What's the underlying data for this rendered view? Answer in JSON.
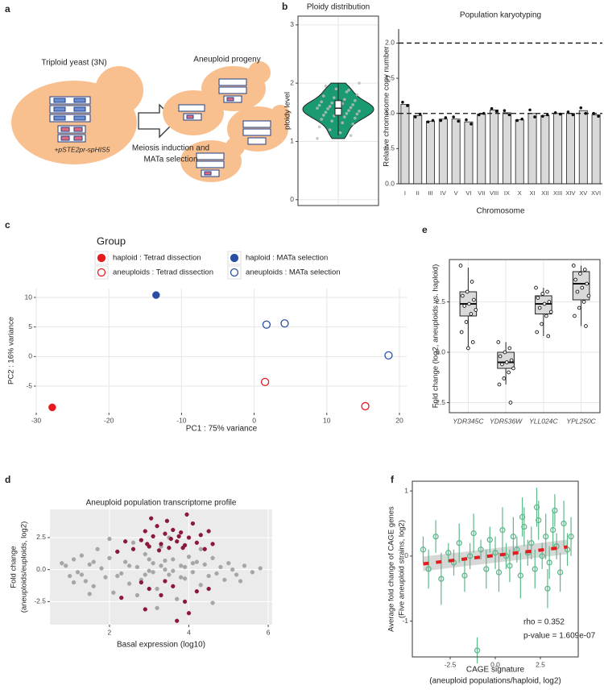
{
  "panels": [
    "a",
    "b",
    "c",
    "d",
    "e",
    "f"
  ],
  "diagram": {
    "left_label": "Triploid yeast (3N)",
    "plasmid": "+pSTE2pr-spHIS5",
    "arrow_label": [
      "Meiosis induction and",
      "MATa selection"
    ],
    "right_label": "Aneuploid progeny"
  },
  "chart_data": [
    {
      "type": "violin",
      "title": "Ploidy distribution",
      "ylabel": "ploidy level",
      "color": "#1a9a72",
      "values": [
        1.05,
        1.1,
        1.15,
        1.2,
        1.25,
        1.3,
        1.32,
        1.35,
        1.38,
        1.4,
        1.42,
        1.44,
        1.45,
        1.47,
        1.48,
        1.5,
        1.5,
        1.52,
        1.53,
        1.55,
        1.56,
        1.57,
        1.58,
        1.6,
        1.6,
        1.62,
        1.63,
        1.65,
        1.66,
        1.68,
        1.7,
        1.72,
        1.75,
        1.78,
        1.8,
        1.85,
        1.9,
        1.95,
        2.0,
        1.88
      ],
      "box": {
        "whisker_low": 1.1,
        "q1": 1.45,
        "median": 1.57,
        "q3": 1.7,
        "whisker_high": 2.0
      },
      "ylim": [
        -0.1,
        3.15
      ],
      "yticks": [
        0,
        1,
        2,
        3
      ],
      "grid": true,
      "frame": true
    },
    {
      "type": "bar",
      "title": "Population karyotyping",
      "xlabel": "Chromosome",
      "ylabel": "Relative chromosome copy number",
      "color": "#d9d9d9",
      "categories": [
        "I",
        "II",
        "III",
        "IV",
        "V",
        "VI",
        "VII",
        "VIII",
        "IX",
        "X",
        "XI",
        "XII",
        "XIII",
        "XIV",
        "XV",
        "XVI"
      ],
      "values": [
        1.13,
        0.97,
        0.89,
        0.92,
        0.92,
        0.88,
        0.99,
        1.05,
        1.01,
        0.91,
        1.0,
        0.97,
        1.0,
        1.0,
        1.04,
        0.98
      ],
      "points": [
        [
          1.16,
          1.11
        ],
        [
          0.95,
          0.99
        ],
        [
          0.88,
          0.9
        ],
        [
          0.9,
          0.94
        ],
        [
          0.95,
          0.89
        ],
        [
          0.91,
          0.85
        ],
        [
          0.98,
          1.0
        ],
        [
          1.07,
          1.03
        ],
        [
          1.04,
          0.98
        ],
        [
          0.9,
          0.92
        ],
        [
          1.05,
          0.95
        ],
        [
          0.96,
          0.98
        ],
        [
          1.01,
          0.99
        ],
        [
          1.02,
          0.98
        ],
        [
          1.08,
          1.0
        ],
        [
          1.0,
          0.96
        ]
      ],
      "reference_lines": [
        1,
        2
      ],
      "ylim": [
        0,
        2.2
      ],
      "yticks": [
        {
          "value": 0,
          "label": "0.0"
        },
        0.5,
        {
          "value": 1,
          "label": "1.0"
        },
        1.5,
        {
          "value": 2,
          "label": "2.0"
        }
      ],
      "grid": false,
      "frame": false
    },
    {
      "type": "scatter",
      "xlabel": "PC1 : 75% variance",
      "ylabel": "PC2 : 16% variance",
      "legend_title": "Group",
      "legend": "top",
      "series": [
        {
          "name": "haploid :  Tetrad dissection",
          "color": "#e8191c",
          "filled": true,
          "x": [
            -27.8
          ],
          "values": [
            -8.6
          ]
        },
        {
          "name": "aneuploids :  Tetrad dissection",
          "color": "#e8191c",
          "filled": false,
          "x": [
            1.5,
            15.3
          ],
          "values": [
            -4.3,
            -8.4
          ]
        },
        {
          "name": "haploid :  MATa selection",
          "color": "#2b4ea2",
          "filled": true,
          "x": [
            -13.5
          ],
          "values": [
            10.4
          ]
        },
        {
          "name": "aneuploids :  MATa selection",
          "color": "#2b4ea2",
          "filled": false,
          "x": [
            1.7,
            4.2,
            18.5
          ],
          "values": [
            5.4,
            5.6,
            0.2
          ]
        }
      ],
      "xlim": [
        -30,
        21
      ],
      "xticks": [
        -30,
        -20,
        -10,
        0,
        10,
        20
      ],
      "ylim": [
        -9.5,
        11.5
      ],
      "yticks": [
        -5,
        0,
        5,
        10
      ],
      "grid": true,
      "frame": false
    },
    {
      "type": "scatter",
      "title": "Aneuploid population transcriptome profile",
      "xlabel": "Basal expression (log10)",
      "ylabel": [
        "Fold change",
        "(aneuploids/euploids, log2)"
      ],
      "background": "#ebebeb",
      "series": [
        {
          "color": "#a6a6a6",
          "filled": true,
          "x": [
            0.9,
            1.0,
            1.1,
            1.2,
            1.3,
            1.4,
            1.5,
            1.6,
            1.7,
            1.8,
            1.9,
            2.0,
            2.1,
            2.2,
            2.3,
            2.4,
            2.5,
            2.6,
            2.7,
            2.8,
            2.9,
            3.0,
            3.1,
            3.2,
            3.3,
            3.4,
            3.5,
            3.6,
            3.7,
            3.8,
            3.9,
            4.0,
            4.1,
            4.2,
            4.3,
            4.4,
            4.5,
            4.6,
            4.7,
            4.8,
            4.9,
            5.0,
            5.1,
            5.2,
            5.4,
            5.6,
            5.8,
            3.1,
            3.3,
            3.6,
            2.5,
            2.9,
            3.4,
            3.9,
            4.1,
            2.2,
            1.6,
            1.3,
            0.8,
            2.7,
            3.5,
            4.3,
            1.1,
            2.0,
            4.6,
            3.2,
            1.5,
            5.3,
            3.0,
            3.8
          ],
          "values": [
            0.3,
            -0.5,
            0.8,
            -0.2,
            1.1,
            -0.9,
            0.4,
            -1.3,
            1.6,
            0.1,
            -0.6,
            0.9,
            -1.8,
            1.4,
            -0.3,
            0.6,
            -1.1,
            2.1,
            0.2,
            -0.8,
            1.2,
            -0.1,
            0.5,
            -1.5,
            1.8,
            0.0,
            -0.4,
            0.8,
            -2.3,
            0.3,
            -0.7,
            1.0,
            -0.2,
            0.6,
            -1.2,
            0.4,
            -0.5,
            0.9,
            -0.3,
            0.2,
            -0.8,
            0.5,
            0.0,
            -0.4,
            0.3,
            -0.2,
            0.1,
            -0.2,
            0.3,
            -0.1,
            0.3,
            -0.4,
            0.7,
            0.2,
            0.5,
            -0.5,
            0.6,
            -0.4,
            0.5,
            -2.0,
            2.5,
            1.6,
            -1.0,
            2.4,
            -2.6,
            -3.0,
            -1.9,
            -0.9,
            0.8,
            -0.6
          ]
        },
        {
          "color": "#8b1a3a",
          "filled": true,
          "x": [
            2.6,
            2.8,
            2.9,
            3.0,
            3.1,
            3.2,
            3.3,
            3.4,
            3.5,
            3.6,
            3.7,
            3.8,
            3.9,
            4.0,
            4.1,
            4.2,
            4.3,
            4.4,
            3.05,
            3.45,
            3.95,
            2.4,
            4.6,
            3.25,
            3.75,
            2.2,
            4.5,
            3.55,
            2.95,
            3.85,
            3.0,
            3.3,
            3.6,
            3.9,
            4.2,
            2.8,
            4.0,
            3.7,
            2.3,
            4.5,
            2.9,
            3.4
          ],
          "values": [
            1.6,
            2.3,
            3.0,
            1.8,
            2.6,
            3.4,
            2.0,
            2.8,
            1.7,
            3.1,
            2.2,
            2.9,
            1.9,
            2.5,
            3.6,
            2.1,
            2.7,
            1.6,
            4.0,
            3.8,
            4.3,
            2.2,
            2.0,
            1.5,
            2.6,
            1.4,
            3.0,
            2.4,
            2.0,
            1.7,
            -1.5,
            -2.0,
            -1.3,
            -2.5,
            -1.7,
            -1.0,
            -3.4,
            -4.0,
            -2.2,
            -1.5,
            -3.1,
            -0.9
          ]
        }
      ],
      "xlim": [
        0.5,
        6.1
      ],
      "xticks": [
        2,
        4,
        6
      ],
      "ylim": [
        -4.3,
        4.7
      ],
      "yticks": [
        -2.5,
        {
          "value": 0,
          "label": "0.0"
        },
        2.5
      ],
      "grid": true,
      "frame": false
    },
    {
      "type": "box",
      "ylabel": "Fold change (log2, aneuploids vs. haploid)",
      "color": "#d9d9d9",
      "categories": [
        "YDR345C",
        "YDR536W",
        "YLL024C",
        "YPL250C"
      ],
      "box": [
        {
          "whisker_low": 0.2,
          "q1": 1.8,
          "median": 2.4,
          "q3": 3.0,
          "whisker_high": 4.2
        },
        {
          "whisker_low": -1.6,
          "q1": -0.8,
          "median": -0.5,
          "q3": 0.0,
          "whisker_high": 0.5
        },
        {
          "whisker_low": 0.8,
          "q1": 1.9,
          "median": 2.4,
          "q3": 2.8,
          "whisker_high": 3.2
        },
        {
          "whisker_low": 1.3,
          "q1": 2.6,
          "median": 3.4,
          "q3": 4.0,
          "whisker_high": 4.3
        }
      ],
      "points": [
        [
          4.3,
          3.5,
          3.0,
          2.8,
          2.6,
          2.4,
          2.3,
          2.1,
          1.9,
          1.5,
          1.0,
          0.5,
          0.2
        ],
        [
          0.5,
          0.2,
          0.0,
          -0.2,
          -0.4,
          -0.5,
          -0.6,
          -0.8,
          -1.0,
          -1.3,
          -1.6,
          -2.5
        ],
        [
          3.2,
          3.0,
          2.9,
          2.7,
          2.5,
          2.4,
          2.2,
          2.0,
          1.8,
          1.4,
          1.0,
          0.8
        ],
        [
          4.3,
          4.1,
          3.9,
          3.6,
          3.4,
          3.2,
          3.0,
          2.8,
          2.5,
          2.2,
          1.8,
          1.3
        ]
      ],
      "ylim": [
        -3,
        4.6
      ],
      "yticks": [
        -2.5,
        {
          "value": 0,
          "label": "0.0"
        },
        2.5
      ],
      "grid": true,
      "frame": true
    },
    {
      "type": "scatter",
      "xlabel": [
        "CAGE signature",
        "(aneuploid populations/haploid, log2)"
      ],
      "ylabel": [
        "Average fold change of CAGE genes",
        "(Five aneuploid strains, log2)"
      ],
      "annotations": [
        "rho = 0.352",
        "p-value = 1.609e-07"
      ],
      "series": [
        {
          "color": "#5fb88a",
          "filled": false,
          "x": [
            -4.0,
            -3.7,
            -3.3,
            -3.0,
            -2.6,
            -2.3,
            -2.0,
            -1.7,
            -1.4,
            -1.2,
            -1.0,
            -0.8,
            -0.5,
            -0.3,
            0.0,
            0.2,
            0.4,
            0.6,
            0.8,
            1.0,
            1.2,
            1.4,
            1.6,
            1.8,
            2.0,
            2.2,
            2.4,
            2.6,
            2.8,
            3.0,
            3.2,
            3.4,
            3.6,
            3.8,
            4.0,
            4.2,
            2.3,
            3.3,
            1.5,
            2.9
          ],
          "values": [
            0.1,
            -0.2,
            0.3,
            -0.35,
            0.05,
            -0.1,
            0.2,
            -0.3,
            0.0,
            0.35,
            -1.45,
            0.1,
            -0.2,
            0.25,
            0.05,
            -0.25,
            0.4,
            0.0,
            -0.15,
            0.3,
            0.1,
            -0.3,
            0.45,
            0.05,
            0.2,
            -0.2,
            0.55,
            0.0,
            0.3,
            -0.1,
            0.4,
            0.15,
            -0.25,
            0.5,
            0.1,
            0.3,
            0.75,
            0.7,
            0.6,
            -0.5
          ],
          "errors": [
            0.2,
            0.3,
            0.25,
            0.4,
            0.15,
            0.2,
            0.3,
            0.25,
            0.2,
            0.3,
            0.2,
            0.15,
            0.3,
            0.2,
            0.25,
            0.3,
            0.35,
            0.2,
            0.25,
            0.3,
            0.2,
            0.35,
            0.3,
            0.2,
            0.25,
            0.3,
            0.3,
            0.2,
            0.35,
            0.25,
            0.3,
            0.2,
            0.3,
            0.35,
            0.25,
            0.3,
            0.3,
            0.25,
            0.3,
            0.3
          ]
        }
      ],
      "fit": {
        "color": "#e8191c",
        "x": [
          -4,
          4
        ],
        "values": [
          -0.12,
          0.14
        ]
      },
      "xlim": [
        -4.6,
        4.6
      ],
      "xticks": [
        -2.5,
        {
          "value": 0,
          "label": "0.0"
        },
        2.5
      ],
      "ylim": [
        -1.55,
        1.15
      ],
      "yticks": [
        -1,
        0,
        1
      ],
      "grid": false,
      "frame": true
    }
  ]
}
